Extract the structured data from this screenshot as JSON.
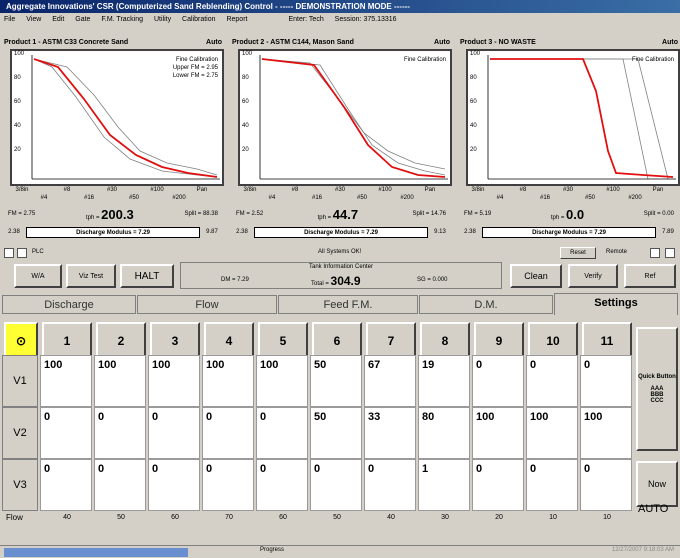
{
  "window_title": "Aggregate Innovations' CSR (Computerized Sand Reblending) Control - ----- DEMONSTRATION MODE ------",
  "menu": [
    "File",
    "View",
    "Edit",
    "Gate",
    "F.M. Tracking",
    "Utility",
    "Calibration",
    "Report"
  ],
  "menu_right": {
    "user_label": "Enter: Tech",
    "session_label": "Session: 375.13316"
  },
  "panels": [
    {
      "title": "Product 1 - ASTM C33 Concrete Sand",
      "mode": "Auto",
      "legend": [
        "Fine Calibration",
        "Upper FM = 2.95",
        "Lower FM = 2.75"
      ],
      "fm": "FM = 2.75",
      "tph_label": "tph =",
      "tph": "200.3",
      "split": "Split = 88.38",
      "dm_left": "2.38",
      "dm_label": "Discharge Modulus = 7.29",
      "dm_right": "9.87",
      "x_top": [
        "3/8in",
        "#8",
        "#30",
        "#100",
        "Pan"
      ],
      "x_bot": [
        "#4",
        "#16",
        "#50",
        "#200"
      ]
    },
    {
      "title": "Product 2 - ASTM C144, Mason Sand",
      "mode": "Auto",
      "legend": [
        "Fine Calibration"
      ],
      "fm": "FM = 2.52",
      "tph_label": "tph =",
      "tph": "44.7",
      "split": "Split = 14.76",
      "dm_left": "2.38",
      "dm_label": "Discharge Modulus = 7.29",
      "dm_right": "9.13",
      "x_top": [
        "3/8in",
        "#8",
        "#30",
        "#100",
        "Pan"
      ],
      "x_bot": [
        "#4",
        "#16",
        "#50",
        "#200"
      ]
    },
    {
      "title": "Product 3 - NO WASTE",
      "mode": "Auto",
      "legend": [
        "Fine Calibration"
      ],
      "fm": "FM = 5.19",
      "tph_label": "tph =",
      "tph": "0.0",
      "split": "Split = 0.00",
      "dm_left": "2.38",
      "dm_label": "Discharge Modulus = 7.29",
      "dm_right": "7.89",
      "x_top": [
        "3/8in",
        "#8",
        "#30",
        "#100",
        "Pan"
      ],
      "x_bot": [
        "#4",
        "#16",
        "#50",
        "#200"
      ]
    }
  ],
  "y_ticks": [
    "100",
    "80",
    "60",
    "40",
    "20",
    "0"
  ],
  "controls": {
    "plc_label": "PLC",
    "reset_label": "Reset",
    "remote_label": "Remote",
    "wa_label": "W/A",
    "viz_test_label": "Viz Test",
    "halt_label": "HALT",
    "dm_value": "DM = 7.29",
    "all_systems": "All Systems OK!",
    "tank_label": "Tank Information Center",
    "total_label": "Total =",
    "total_value": "304.9",
    "sg_value": "SG = 0.000",
    "clean_label": "Clean",
    "verify_label": "Verify",
    "ref_label": "Ref"
  },
  "tabs": [
    "Discharge",
    "Flow",
    "Feed F.M.",
    "D.M.",
    "Settings"
  ],
  "active_tab": 4,
  "grid": {
    "corner": "⊙",
    "columns": [
      "1",
      "2",
      "3",
      "4",
      "5",
      "6",
      "7",
      "8",
      "9",
      "10",
      "11"
    ],
    "rows": [
      {
        "label": "V1",
        "values": [
          "100",
          "100",
          "100",
          "100",
          "100",
          "50",
          "67",
          "19",
          "0",
          "0",
          "0"
        ]
      },
      {
        "label": "V2",
        "values": [
          "0",
          "0",
          "0",
          "0",
          "0",
          "50",
          "33",
          "80",
          "100",
          "100",
          "100"
        ]
      },
      {
        "label": "V3",
        "values": [
          "0",
          "0",
          "0",
          "0",
          "0",
          "0",
          "0",
          "1",
          "0",
          "0",
          "0"
        ]
      }
    ],
    "quick_button": "Quick Button",
    "quick_lines": "AAA BBB CCC",
    "now_label": "Now",
    "auto_label": "AUTO",
    "flow_label": "Flow",
    "flow_values": [
      "40",
      "50",
      "60",
      "70",
      "60",
      "50",
      "40",
      "30",
      "20",
      "10",
      "10"
    ]
  },
  "status": {
    "progress_fraction": 0.27,
    "progress_label": "Progress",
    "timestamp": "12/27/2007 9:18:03 AM"
  },
  "colors": {
    "measured": "#e01010",
    "limit": "#909090",
    "accent": "#ffff33",
    "titlebar": "#0a246a"
  }
}
